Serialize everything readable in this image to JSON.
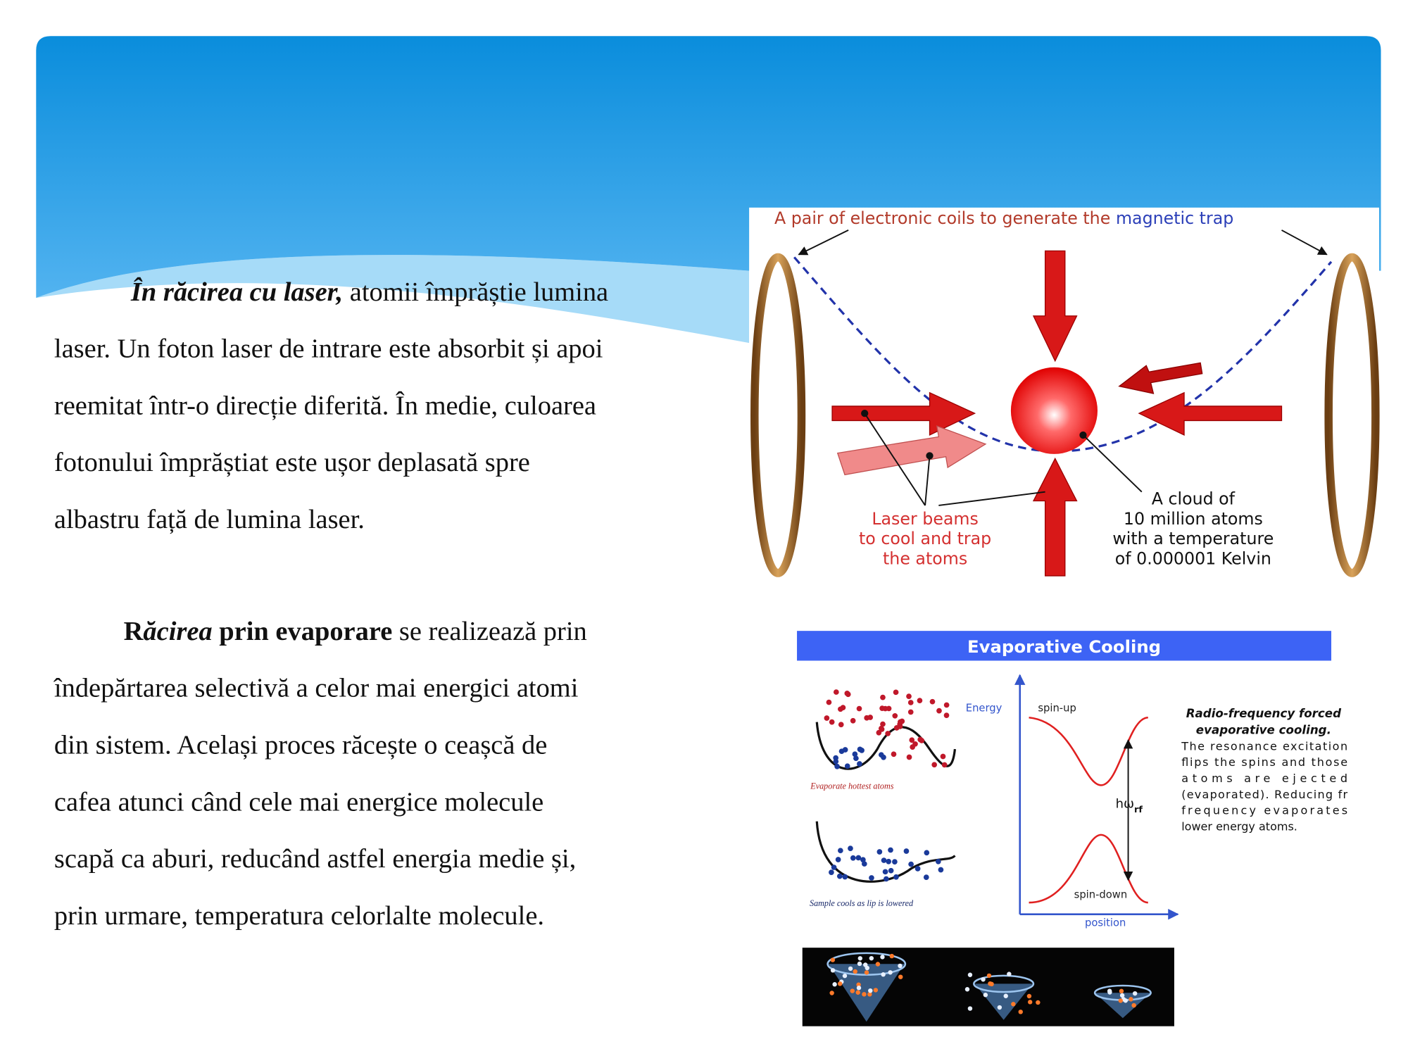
{
  "slide": {
    "paragraphs": [
      {
        "lines": [
          [
            "În răcirea cu laser,",
            " atomii împrăștie lumina"
          ],
          [
            "laser. Un foton laser de intrare este absorbit și apoi"
          ],
          [
            "reemitat într-o direcție diferită. În medie, culoarea"
          ],
          [
            "fotonului împrăștiat este ușor deplasată spre"
          ],
          [
            "albastru față de lumina laser."
          ]
        ]
      },
      {
        "lines": [
          [
            "R",
            "ăcirea",
            " prin evaporare",
            " se realizează prin"
          ],
          [
            "îndepărtarea selectivă a celor mai energici atomi"
          ],
          [
            "din sistem. Același proces răcește o ceașcă de"
          ],
          [
            "cafea atunci când cele mai energice molecule"
          ],
          [
            "scapă ca aburi, reducând astfel energia medie și,"
          ],
          [
            "prin urmare, temperatura celorlalte molecule."
          ]
        ]
      }
    ]
  },
  "figure_magnetic_trap": {
    "title": [
      "A pair of electronic coils to generate the",
      "magnetic trap"
    ],
    "laser_label": [
      "Laser beams",
      "to cool and trap",
      "the atoms"
    ],
    "cloud_label": [
      "A cloud of",
      "10 million atoms",
      "with a temperature",
      "of 0.000001 Kelvin"
    ]
  },
  "figure_evaporative": {
    "title": "Evaporative Cooling",
    "y_axis": "Energy",
    "x_axis": "position",
    "upper_curve": "spin-up",
    "lower_curve": "spin-down",
    "transition": "hω",
    "transition_sub": "rf",
    "caption_title": [
      "Radio-frequency forced",
      "evaporative cooling."
    ],
    "caption_body": [
      "The resonance excitation",
      "flips the spins and those",
      "atoms are ejected",
      "(evaporated). Reducing fr",
      "frequency evaporates",
      "lower energy atoms."
    ],
    "panel_top": "Evaporate hottest atoms",
    "panel_bottom": "Sample cools as lip is lowered"
  }
}
